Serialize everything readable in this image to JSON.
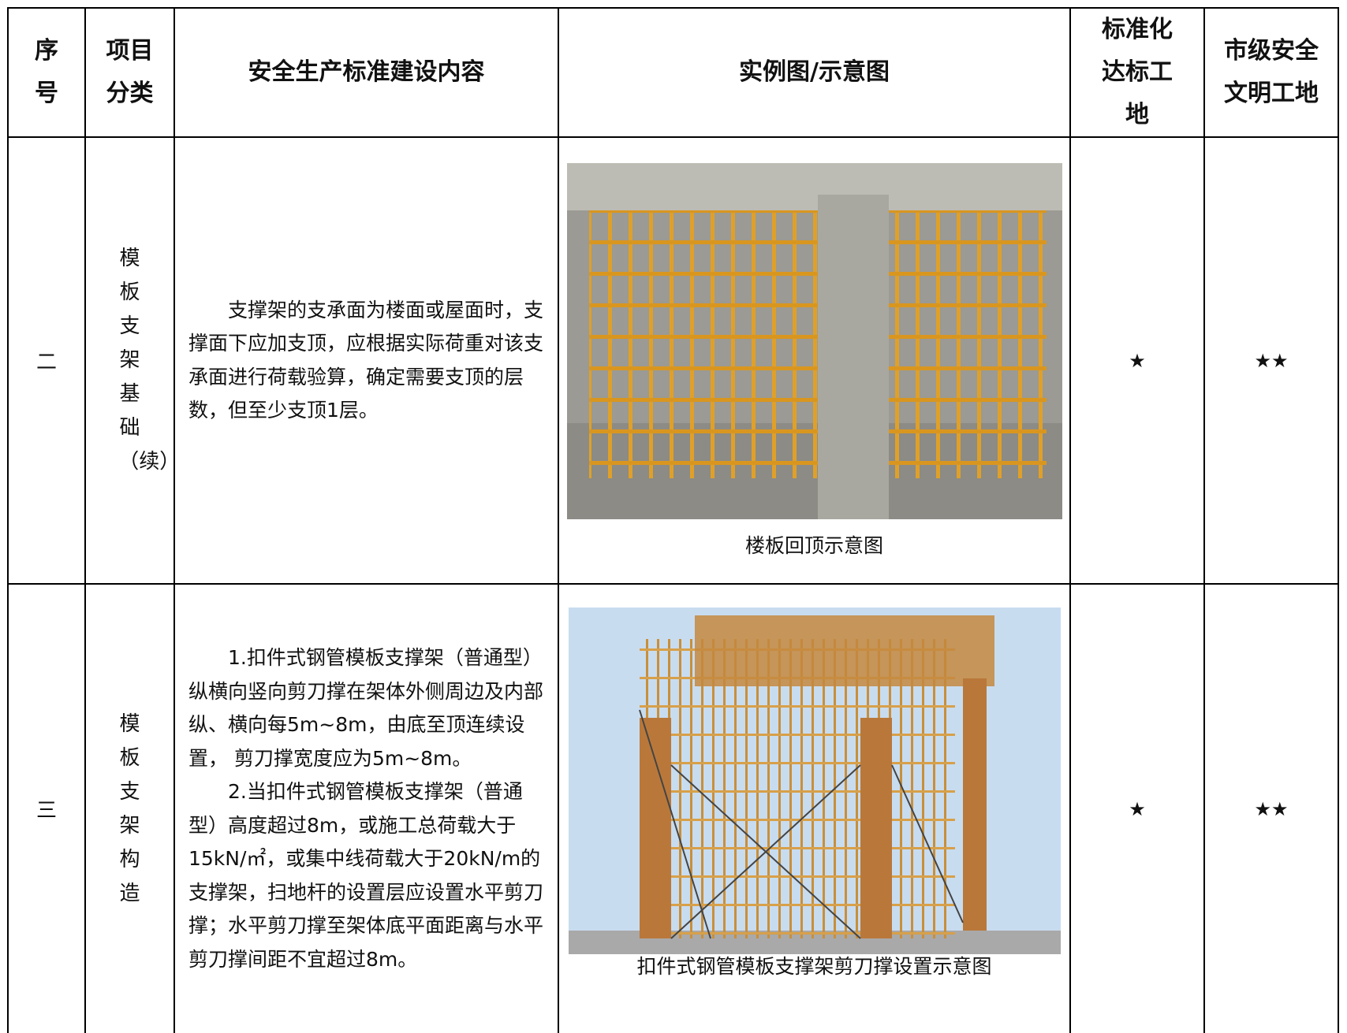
{
  "table": {
    "header": [
      "序号",
      "项目分类",
      "安全生产标准建设内容",
      "实例图/示意图",
      "标准化达标工地",
      "市级安全文明工地"
    ],
    "rows": [
      {
        "index": "二",
        "category": "模板支架基础（续）",
        "content": [
          "支撑架的支承面为楼面或屋面时，支撑面下应加支顶，应根据实际荷重对该支承面进行荷载验算，确定需要支顶的层数，但至少支顶1层。"
        ],
        "caption": "楼板回顶示意图",
        "standard": "★",
        "city": "★★"
      },
      {
        "index": "三",
        "category": "模板支架构造",
        "content": [
          "1.扣件式钢管模板支撑架（普通型）纵横向竖向剪刀撑在架体外侧周边及内部纵、横向每5m~8m，由底至顶连续设置， 剪刀撑宽度应为5m~8m。",
          "2.当扣件式钢管模板支撑架（普通型）高度超过8m，或施工总荷载大于15kN/㎡，或集中线荷载大于20kN/m的支撑架，扫地杆的设置层应设置水平剪刀撑；水平剪刀撑至架体底平面距离与水平剪刀撑间距不宜超过8m。"
        ],
        "caption": "扣件式钢管模板支撑架剪刀撑设置示意图",
        "standard": "★",
        "city": "★★"
      }
    ]
  }
}
